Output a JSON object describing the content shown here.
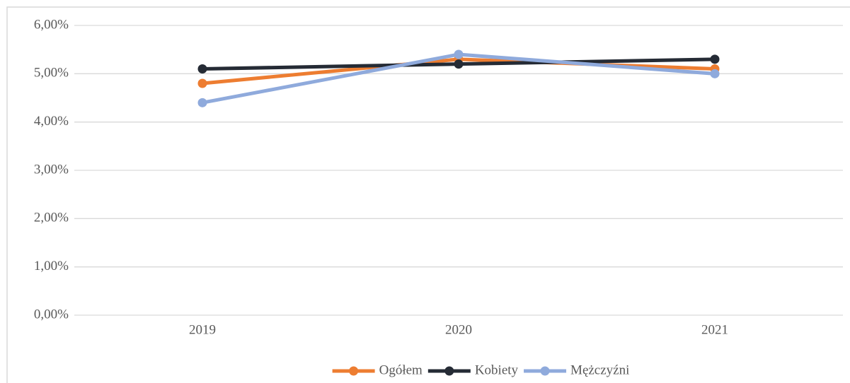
{
  "chart_data": {
    "type": "line",
    "categories": [
      "2019",
      "2020",
      "2021"
    ],
    "series": [
      {
        "name": "Ogółem",
        "color": "#ED7D31",
        "values": [
          4.8,
          5.3,
          5.1
        ]
      },
      {
        "name": "Kobiety",
        "color": "#252B35",
        "values": [
          5.1,
          5.2,
          5.3
        ]
      },
      {
        "name": "Mężczyźni",
        "color": "#8FAADC",
        "values": [
          4.4,
          5.4,
          5.0
        ]
      }
    ],
    "ylim": [
      0,
      6
    ],
    "yticks": [
      {
        "value": 0,
        "label": "0,00%"
      },
      {
        "value": 1,
        "label": "1,00%"
      },
      {
        "value": 2,
        "label": "2,00%"
      },
      {
        "value": 3,
        "label": "3,00%"
      },
      {
        "value": 4,
        "label": "4,00%"
      },
      {
        "value": 5,
        "label": "5,00%"
      },
      {
        "value": 6,
        "label": "6,00%"
      }
    ],
    "grid": true,
    "legend": "bottom"
  }
}
